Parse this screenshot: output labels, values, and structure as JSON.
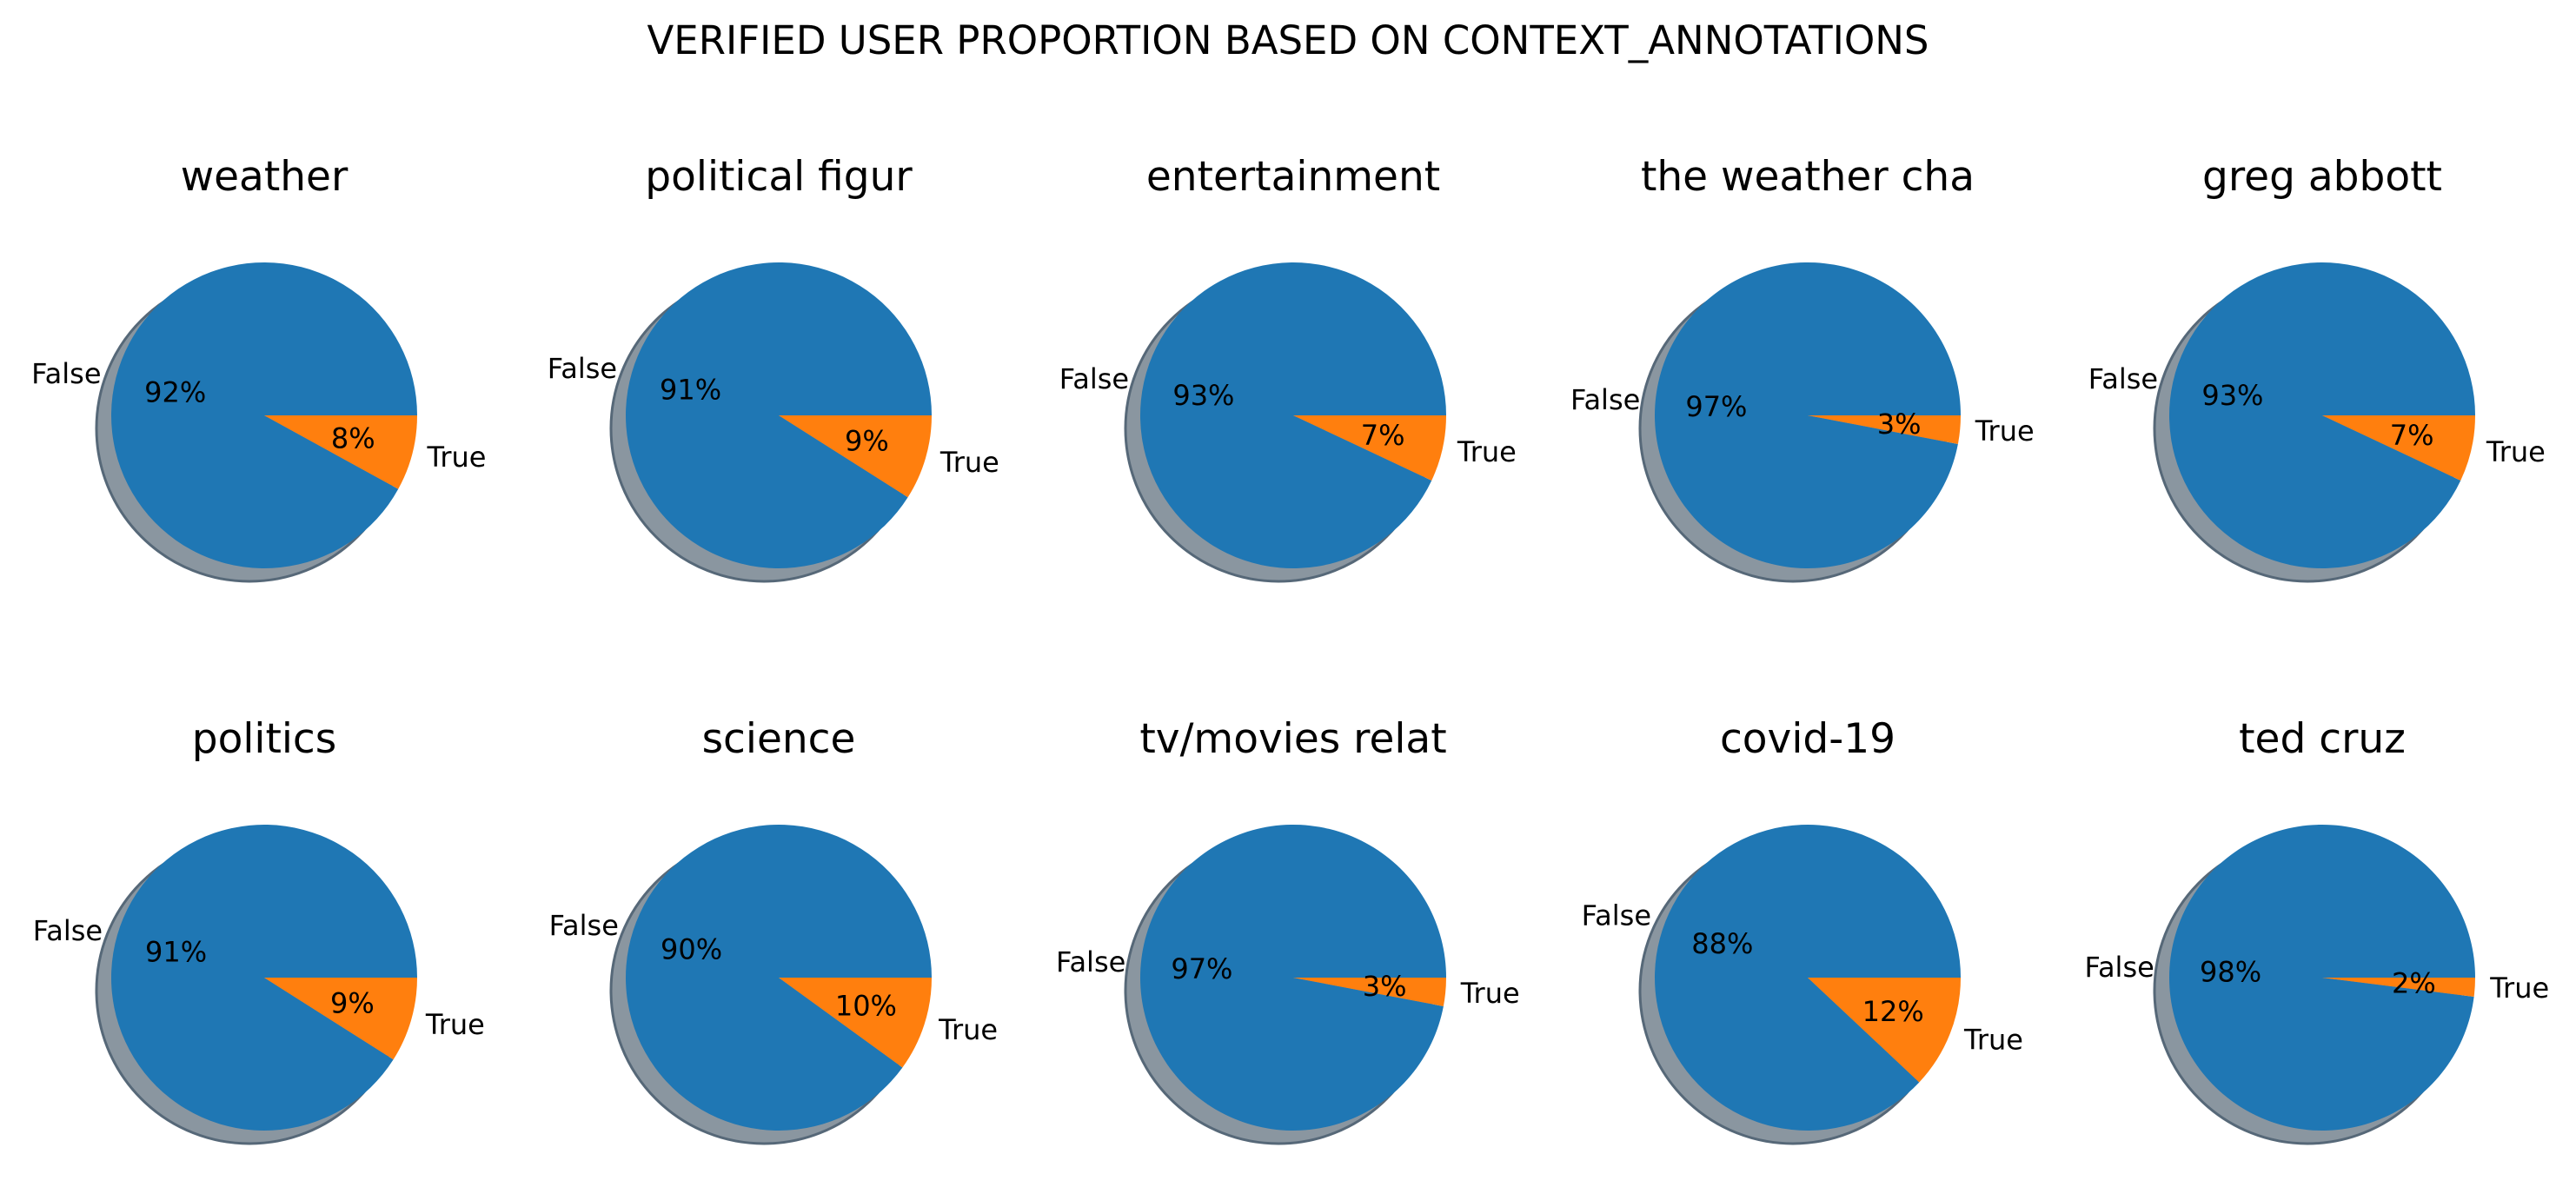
{
  "figure": {
    "title": "VERIFIED USER PROPORTION BASED ON CONTEXT_ANNOTATIONS"
  },
  "colors": {
    "false_slice": "#1f77b4",
    "true_slice": "#ff7f0e",
    "shadow": "#8a96a0",
    "shadow_edge": "#566878"
  },
  "chart_data": [
    {
      "type": "pie",
      "title": "weather",
      "labels": [
        "False",
        "True"
      ],
      "values": [
        92,
        8
      ],
      "pct_labels": [
        "92%",
        "8%"
      ],
      "shadow": true,
      "startangle": 0
    },
    {
      "type": "pie",
      "title": "political figur",
      "labels": [
        "False",
        "True"
      ],
      "values": [
        91,
        9
      ],
      "pct_labels": [
        "91%",
        "9%"
      ],
      "shadow": true,
      "startangle": 0
    },
    {
      "type": "pie",
      "title": "entertainment",
      "labels": [
        "False",
        "True"
      ],
      "values": [
        93,
        7
      ],
      "pct_labels": [
        "93%",
        "7%"
      ],
      "shadow": true,
      "startangle": 0
    },
    {
      "type": "pie",
      "title": "the weather cha",
      "labels": [
        "False",
        "True"
      ],
      "values": [
        97,
        3
      ],
      "pct_labels": [
        "97%",
        "3%"
      ],
      "shadow": true,
      "startangle": 0
    },
    {
      "type": "pie",
      "title": "greg abbott",
      "labels": [
        "False",
        "True"
      ],
      "values": [
        93,
        7
      ],
      "pct_labels": [
        "93%",
        "7%"
      ],
      "shadow": true,
      "startangle": 0
    },
    {
      "type": "pie",
      "title": "politics",
      "labels": [
        "False",
        "True"
      ],
      "values": [
        91,
        9
      ],
      "pct_labels": [
        "91%",
        "9%"
      ],
      "shadow": true,
      "startangle": 0
    },
    {
      "type": "pie",
      "title": "science",
      "labels": [
        "False",
        "True"
      ],
      "values": [
        90,
        10
      ],
      "pct_labels": [
        "90%",
        "10%"
      ],
      "shadow": true,
      "startangle": 0
    },
    {
      "type": "pie",
      "title": "tv/movies relat",
      "labels": [
        "False",
        "True"
      ],
      "values": [
        97,
        3
      ],
      "pct_labels": [
        "97%",
        "3%"
      ],
      "shadow": true,
      "startangle": 0
    },
    {
      "type": "pie",
      "title": "covid-19",
      "labels": [
        "False",
        "True"
      ],
      "values": [
        88,
        12
      ],
      "pct_labels": [
        "88%",
        "12%"
      ],
      "shadow": true,
      "startangle": 0
    },
    {
      "type": "pie",
      "title": "ted cruz",
      "labels": [
        "False",
        "True"
      ],
      "values": [
        98,
        2
      ],
      "pct_labels": [
        "98%",
        "2%"
      ],
      "shadow": true,
      "startangle": 0
    }
  ]
}
